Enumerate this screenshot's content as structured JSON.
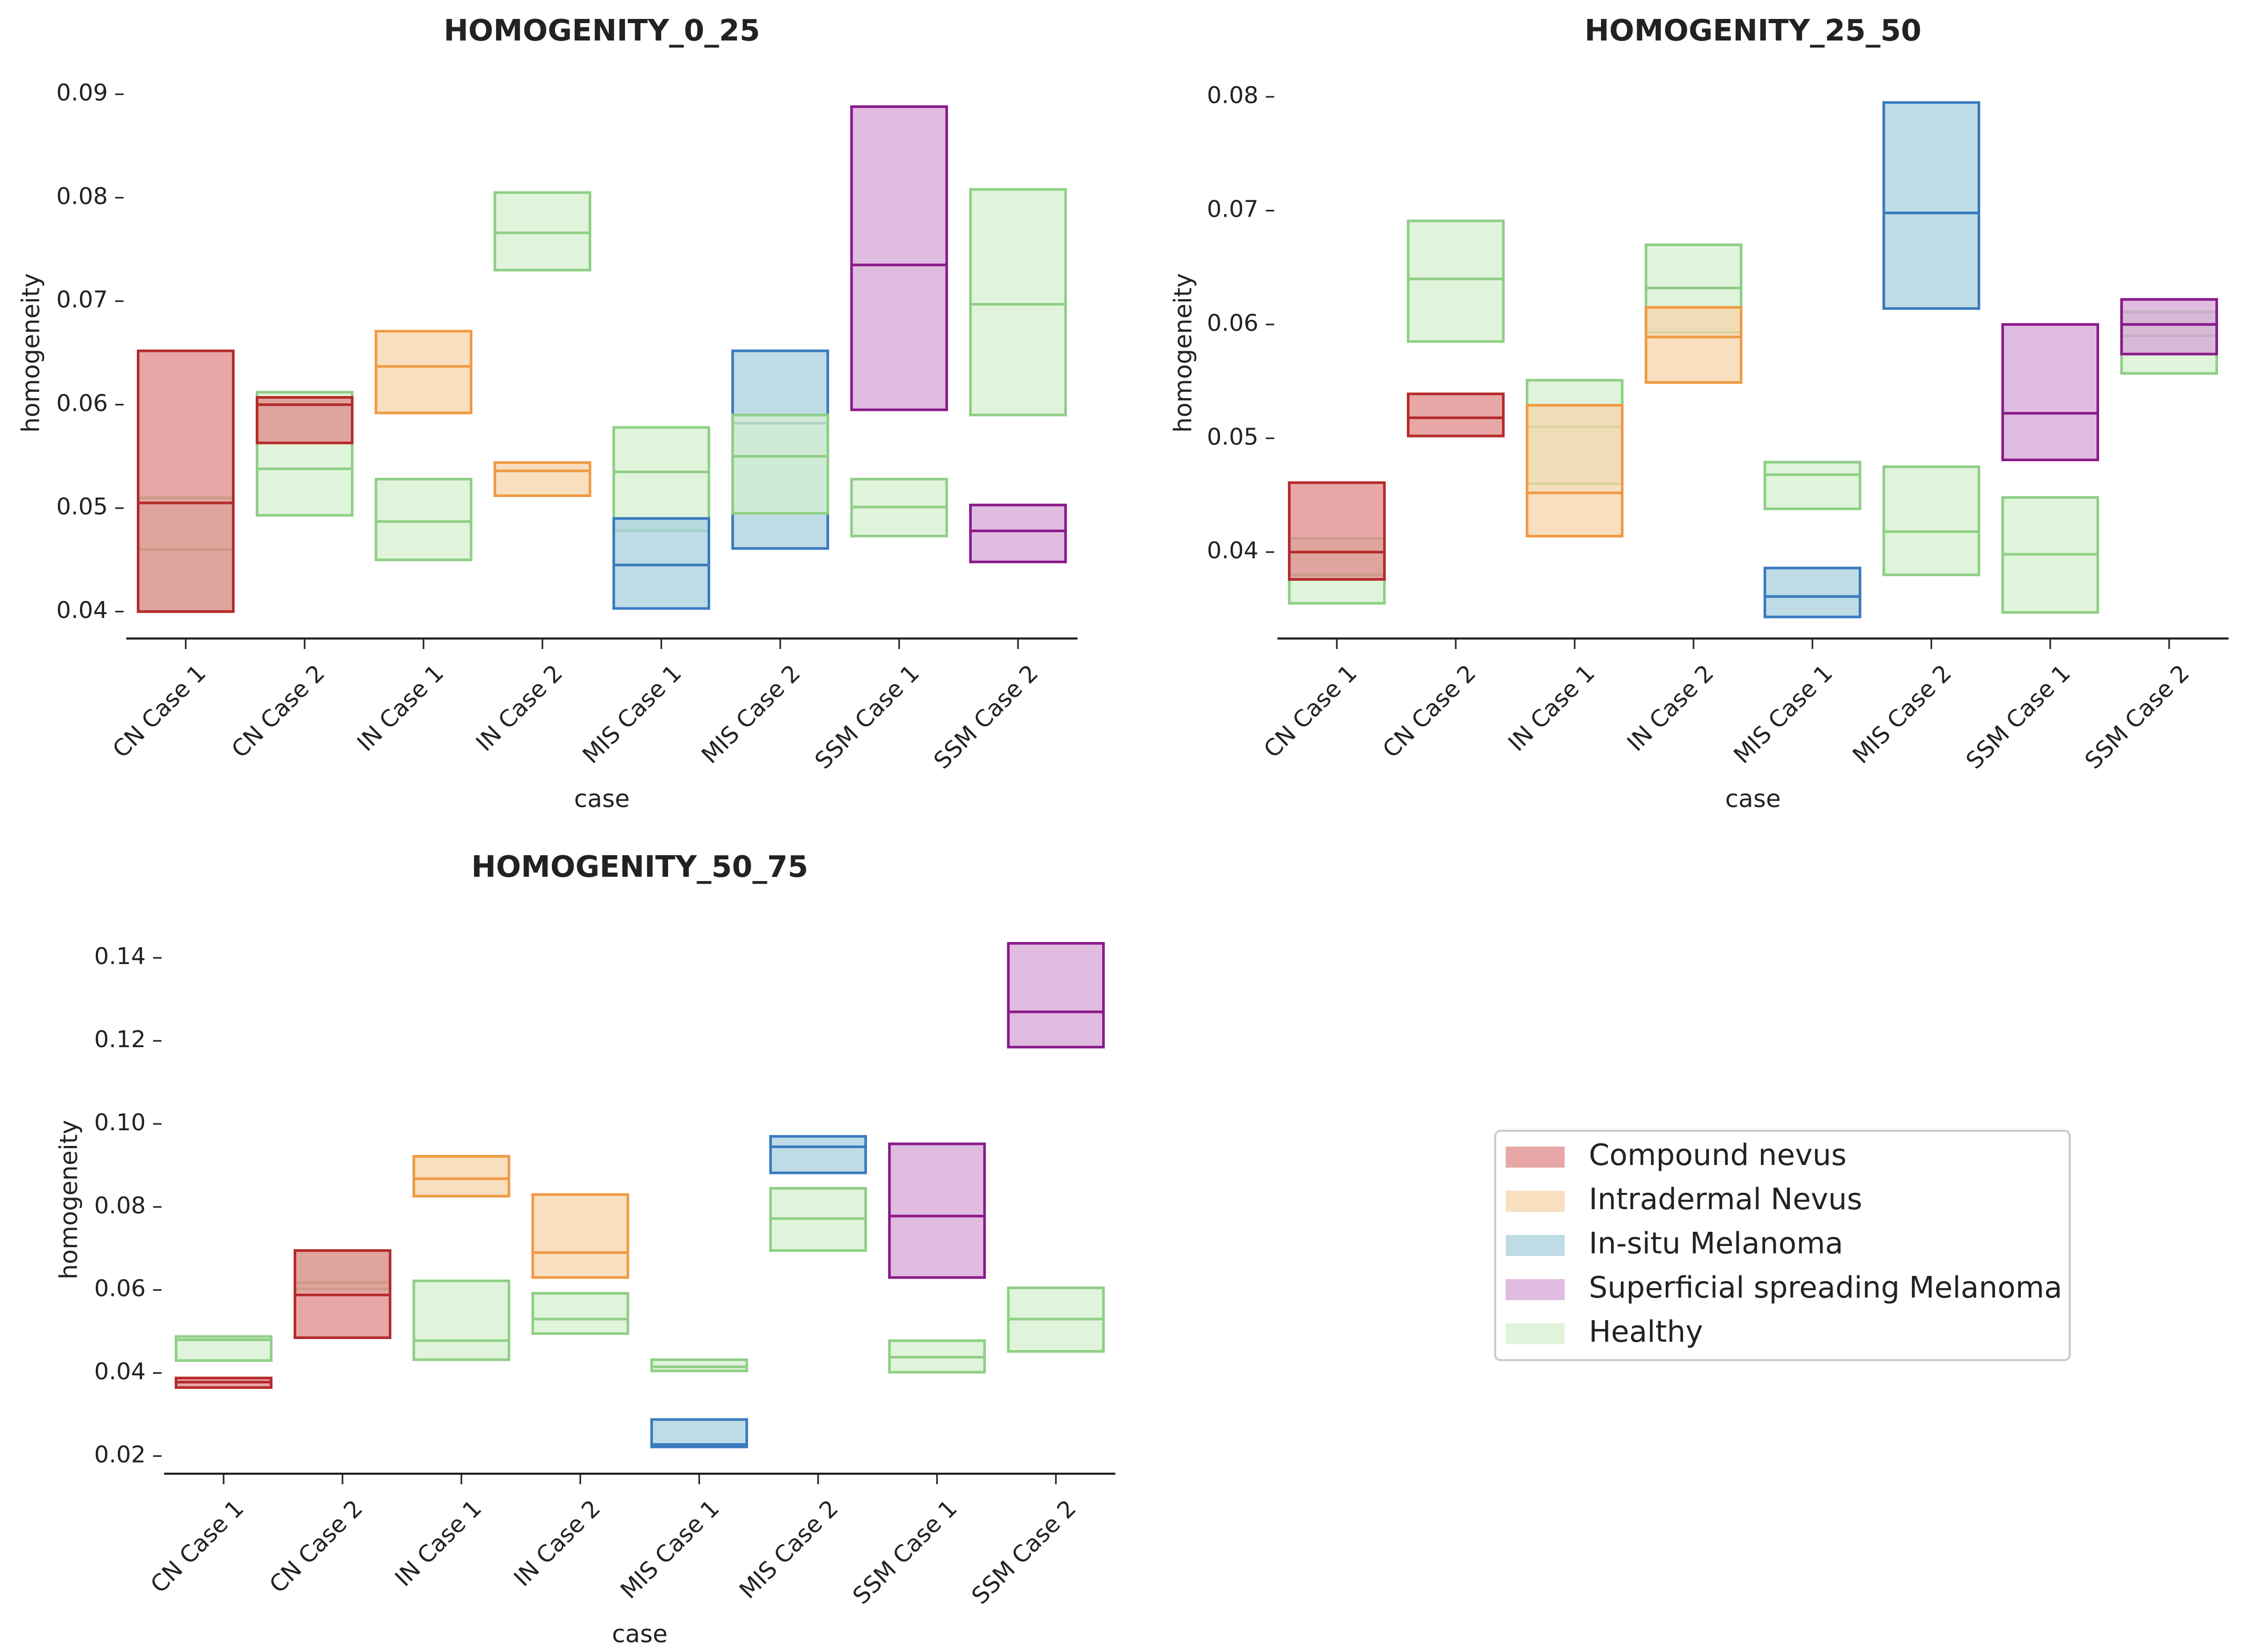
{
  "colors": {
    "Compound nevus": {
      "fill": "#e08a8a",
      "stroke": "#b52a2a"
    },
    "Intradermal Nevus": {
      "fill": "#f5d4a9",
      "stroke": "#f09a44"
    },
    "In-situ Melanoma": {
      "fill": "#a9d0de",
      "stroke": "#3a7bbf"
    },
    "Superficial spreading Melanoma": {
      "fill": "#d6a5d6",
      "stroke": "#8a1a8a"
    },
    "Healthy": {
      "fill": "#d6f0cf",
      "stroke": "#8fcf86"
    }
  },
  "chart_data": [
    {
      "type": "boxen",
      "title": "HOMOGENITY_0_25",
      "xlabel": "case",
      "ylabel": "homogeneity",
      "ylim": [
        0.0375,
        0.0925
      ],
      "yticks": [
        0.04,
        0.05,
        0.06,
        0.07,
        0.08,
        0.09
      ],
      "ytick_labels": [
        "0.04",
        "0.05",
        "0.06",
        "0.07",
        "0.08",
        "0.09"
      ],
      "categories": [
        "CN Case 1",
        "CN Case 2",
        "IN Case 1",
        "IN Case 2",
        "MIS Case 1",
        "MIS Case 2",
        "SSM Case 1",
        "SSM Case 2"
      ],
      "boxes": [
        {
          "category": "CN Case 1",
          "class": "Healthy",
          "low": 0.04,
          "high": 0.051,
          "median": 0.046
        },
        {
          "category": "CN Case 1",
          "class": "Compound nevus",
          "low": 0.04,
          "high": 0.0652,
          "median": 0.0505
        },
        {
          "category": "CN Case 2",
          "class": "Healthy",
          "low": 0.0493,
          "high": 0.0612,
          "median": 0.0538
        },
        {
          "category": "CN Case 2",
          "class": "Compound nevus",
          "low": 0.0563,
          "high": 0.0607,
          "median": 0.06
        },
        {
          "category": "IN Case 1",
          "class": "Healthy",
          "low": 0.045,
          "high": 0.0528,
          "median": 0.0487
        },
        {
          "category": "IN Case 1",
          "class": "Intradermal Nevus",
          "low": 0.0592,
          "high": 0.0671,
          "median": 0.0637
        },
        {
          "category": "IN Case 2",
          "class": "Healthy",
          "low": 0.073,
          "high": 0.0805,
          "median": 0.0766
        },
        {
          "category": "IN Case 2",
          "class": "Intradermal Nevus",
          "low": 0.0512,
          "high": 0.0544,
          "median": 0.0536
        },
        {
          "category": "MIS Case 1",
          "class": "Healthy",
          "low": 0.0478,
          "high": 0.0578,
          "median": 0.0535
        },
        {
          "category": "MIS Case 1",
          "class": "In-situ Melanoma",
          "low": 0.0403,
          "high": 0.049,
          "median": 0.0445
        },
        {
          "category": "MIS Case 2",
          "class": "In-situ Melanoma",
          "low": 0.0461,
          "high": 0.0652,
          "median": 0.0582
        },
        {
          "category": "MIS Case 2",
          "class": "Healthy",
          "low": 0.0495,
          "high": 0.059,
          "median": 0.055
        },
        {
          "category": "SSM Case 1",
          "class": "Healthy",
          "low": 0.0473,
          "high": 0.0528,
          "median": 0.0501
        },
        {
          "category": "SSM Case 1",
          "class": "Superficial spreading Melanoma",
          "low": 0.0595,
          "high": 0.0888,
          "median": 0.0735
        },
        {
          "category": "SSM Case 2",
          "class": "Healthy",
          "low": 0.059,
          "high": 0.0808,
          "median": 0.0697
        },
        {
          "category": "SSM Case 2",
          "class": "Superficial spreading Melanoma",
          "low": 0.0448,
          "high": 0.0503,
          "median": 0.0478
        }
      ]
    },
    {
      "type": "boxen",
      "title": "HOMOGENITY_25_50",
      "xlabel": "case",
      "ylabel": "homogeneity",
      "ylim": [
        0.0325,
        0.0825
      ],
      "yticks": [
        0.04,
        0.05,
        0.06,
        0.07,
        0.08
      ],
      "ytick_labels": [
        "0.04",
        "0.05",
        "0.06",
        "0.07",
        "0.08"
      ],
      "categories": [
        "CN Case 1",
        "CN Case 2",
        "IN Case 1",
        "IN Case 2",
        "MIS Case 1",
        "MIS Case 2",
        "SSM Case 1",
        "SSM Case 2"
      ],
      "boxes": [
        {
          "category": "CN Case 1",
          "class": "Healthy",
          "low": 0.0355,
          "high": 0.0412,
          "median": 0.038
        },
        {
          "category": "CN Case 1",
          "class": "Compound nevus",
          "low": 0.0376,
          "high": 0.0461,
          "median": 0.04
        },
        {
          "category": "CN Case 2",
          "class": "Healthy",
          "low": 0.0585,
          "high": 0.0691,
          "median": 0.064
        },
        {
          "category": "CN Case 2",
          "class": "Compound nevus",
          "low": 0.0502,
          "high": 0.0539,
          "median": 0.0518
        },
        {
          "category": "IN Case 1",
          "class": "Healthy",
          "low": 0.046,
          "high": 0.0551,
          "median": 0.051
        },
        {
          "category": "IN Case 1",
          "class": "Intradermal Nevus",
          "low": 0.0414,
          "high": 0.0529,
          "median": 0.0452
        },
        {
          "category": "IN Case 2",
          "class": "Healthy",
          "low": 0.0593,
          "high": 0.067,
          "median": 0.0632
        },
        {
          "category": "IN Case 2",
          "class": "Intradermal Nevus",
          "low": 0.0549,
          "high": 0.0615,
          "median": 0.0589
        },
        {
          "category": "MIS Case 1",
          "class": "Healthy",
          "low": 0.0438,
          "high": 0.0479,
          "median": 0.0468
        },
        {
          "category": "MIS Case 1",
          "class": "In-situ Melanoma",
          "low": 0.0343,
          "high": 0.0386,
          "median": 0.0361
        },
        {
          "category": "MIS Case 2",
          "class": "Healthy",
          "low": 0.038,
          "high": 0.0475,
          "median": 0.0418
        },
        {
          "category": "MIS Case 2",
          "class": "In-situ Melanoma",
          "low": 0.0614,
          "high": 0.0795,
          "median": 0.0698
        },
        {
          "category": "SSM Case 1",
          "class": "Healthy",
          "low": 0.0347,
          "high": 0.0448,
          "median": 0.0398
        },
        {
          "category": "SSM Case 1",
          "class": "Superficial spreading Melanoma",
          "low": 0.0481,
          "high": 0.06,
          "median": 0.0522
        },
        {
          "category": "SSM Case 2",
          "class": "Healthy",
          "low": 0.0557,
          "high": 0.0611,
          "median": 0.059
        },
        {
          "category": "SSM Case 2",
          "class": "Superficial spreading Melanoma",
          "low": 0.0574,
          "high": 0.0622,
          "median": 0.06
        }
      ]
    },
    {
      "type": "boxen",
      "title": "HOMOGENITY_50_75",
      "xlabel": "case",
      "ylabel": "homogeneity",
      "ylim": [
        0.016,
        0.1475
      ],
      "yticks": [
        0.02,
        0.04,
        0.06,
        0.08,
        0.1,
        0.12,
        0.14
      ],
      "ytick_labels": [
        "0.02",
        "0.04",
        "0.06",
        "0.08",
        "0.10",
        "0.12",
        "0.14"
      ],
      "categories": [
        "CN Case 1",
        "CN Case 2",
        "IN Case 1",
        "IN Case 2",
        "MIS Case 1",
        "MIS Case 2",
        "SSM Case 1",
        "SSM Case 2"
      ],
      "boxes": [
        {
          "category": "CN Case 1",
          "class": "Healthy",
          "low": 0.043,
          "high": 0.0488,
          "median": 0.048
        },
        {
          "category": "CN Case 1",
          "class": "Compound nevus",
          "low": 0.0365,
          "high": 0.0388,
          "median": 0.0378
        },
        {
          "category": "CN Case 2",
          "class": "Healthy",
          "low": 0.0602,
          "high": 0.0695,
          "median": 0.0618
        },
        {
          "category": "CN Case 2",
          "class": "Compound nevus",
          "low": 0.0485,
          "high": 0.0695,
          "median": 0.0588
        },
        {
          "category": "IN Case 1",
          "class": "Healthy",
          "low": 0.0432,
          "high": 0.0622,
          "median": 0.0478
        },
        {
          "category": "IN Case 1",
          "class": "Intradermal Nevus",
          "low": 0.0826,
          "high": 0.0922,
          "median": 0.0868
        },
        {
          "category": "IN Case 2",
          "class": "Healthy",
          "low": 0.0495,
          "high": 0.0592,
          "median": 0.053
        },
        {
          "category": "IN Case 2",
          "class": "Intradermal Nevus",
          "low": 0.063,
          "high": 0.083,
          "median": 0.069
        },
        {
          "category": "MIS Case 1",
          "class": "Healthy",
          "low": 0.0405,
          "high": 0.0432,
          "median": 0.0415
        },
        {
          "category": "MIS Case 1",
          "class": "In-situ Melanoma",
          "low": 0.0222,
          "high": 0.0288,
          "median": 0.0228
        },
        {
          "category": "MIS Case 2",
          "class": "Healthy",
          "low": 0.0695,
          "high": 0.0845,
          "median": 0.0772
        },
        {
          "category": "MIS Case 2",
          "class": "In-situ Melanoma",
          "low": 0.0882,
          "high": 0.097,
          "median": 0.0945
        },
        {
          "category": "SSM Case 1",
          "class": "Healthy",
          "low": 0.0402,
          "high": 0.0478,
          "median": 0.0438
        },
        {
          "category": "SSM Case 1",
          "class": "Superficial spreading Melanoma",
          "low": 0.063,
          "high": 0.0952,
          "median": 0.0778
        },
        {
          "category": "SSM Case 2",
          "class": "Healthy",
          "low": 0.0452,
          "high": 0.0605,
          "median": 0.053
        },
        {
          "category": "SSM Case 2",
          "class": "Superficial spreading Melanoma",
          "low": 0.1185,
          "high": 0.1435,
          "median": 0.127
        }
      ]
    }
  ],
  "legend": {
    "items": [
      "Compound nevus",
      "Intradermal Nevus",
      "In-situ Melanoma",
      "Superficial spreading Melanoma",
      "Healthy"
    ]
  }
}
